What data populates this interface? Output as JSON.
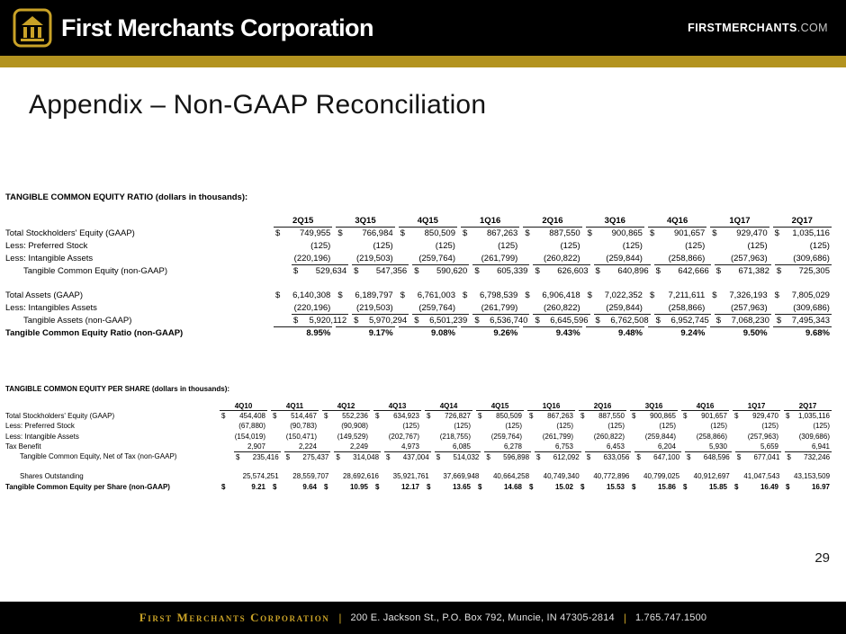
{
  "colors": {
    "gold_accent": "#C9A227",
    "gold_stripe": "#B3931F",
    "bar_black": "#000000"
  },
  "header": {
    "company_name": "First Merchants Corporation",
    "website_bold": "FIRSTMERCHANTS",
    "website_suffix": ".COM"
  },
  "slide": {
    "title": "Appendix – Non-GAAP Reconciliation",
    "page_number": "29"
  },
  "table1": {
    "title": "TANGIBLE COMMON EQUITY RATIO  (dollars in thousands):",
    "currency_symbol": "$",
    "columns": [
      "2Q15",
      "3Q15",
      "4Q15",
      "1Q16",
      "2Q16",
      "3Q16",
      "4Q16",
      "1Q17",
      "2Q17"
    ],
    "rows": [
      {
        "label": "Total Stockholders' Equity (GAAP)",
        "dollar": true,
        "values": [
          "749,955",
          "766,984",
          "850,509",
          "867,263",
          "887,550",
          "900,865",
          "901,657",
          "929,470",
          "1,035,116"
        ]
      },
      {
        "label": "Less: Preferred Stock",
        "values": [
          "(125)",
          "(125)",
          "(125)",
          "(125)",
          "(125)",
          "(125)",
          "(125)",
          "(125)",
          "(125)"
        ]
      },
      {
        "label": "Less: Intangible Assets",
        "values": [
          "(220,196)",
          "(219,503)",
          "(259,764)",
          "(261,799)",
          "(260,822)",
          "(259,844)",
          "(258,866)",
          "(257,963)",
          "(309,686)"
        ]
      },
      {
        "label": "Tangible Common Equity (non-GAAP)",
        "indent": true,
        "dollar": true,
        "topline": true,
        "values": [
          "529,634",
          "547,356",
          "590,620",
          "605,339",
          "626,603",
          "640,896",
          "642,666",
          "671,382",
          "725,305"
        ]
      },
      {
        "spacer": true
      },
      {
        "label": "Total Assets (GAAP)",
        "dollar": true,
        "values": [
          "6,140,308",
          "6,189,797",
          "6,761,003",
          "6,798,539",
          "6,906,418",
          "7,022,352",
          "7,211,611",
          "7,326,193",
          "7,805,029"
        ]
      },
      {
        "label": "Less:  Intangibles Assets",
        "values": [
          "(220,196)",
          "(219,503)",
          "(259,764)",
          "(261,799)",
          "(260,822)",
          "(259,844)",
          "(258,866)",
          "(257,963)",
          "(309,686)"
        ]
      },
      {
        "label": "Tangible Assets (non-GAAP)",
        "indent": true,
        "dollar": true,
        "topline": true,
        "values": [
          "5,920,112",
          "5,970,294",
          "6,501,239",
          "6,536,740",
          "6,645,596",
          "6,762,508",
          "6,952,745",
          "7,068,230",
          "7,495,343"
        ]
      },
      {
        "label": "Tangible Common Equity Ratio (non-GAAP)",
        "bold": true,
        "topline": true,
        "values": [
          "8.95%",
          "9.17%",
          "9.08%",
          "9.26%",
          "9.43%",
          "9.48%",
          "9.24%",
          "9.50%",
          "9.68%"
        ]
      }
    ]
  },
  "table2": {
    "title": "TANGIBLE COMMON EQUITY PER SHARE (dollars in thousands):",
    "currency_symbol": "$",
    "columns": [
      "4Q10",
      "4Q11",
      "4Q12",
      "4Q13",
      "4Q14",
      "4Q15",
      "1Q16",
      "2Q16",
      "3Q16",
      "4Q16",
      "1Q17",
      "2Q17"
    ],
    "rows": [
      {
        "label": "Total Stockholders' Equity (GAAP)",
        "dollar": true,
        "values": [
          "454,408",
          "514,467",
          "552,236",
          "634,923",
          "726,827",
          "850,509",
          "867,263",
          "887,550",
          "900,865",
          "901,657",
          "929,470",
          "1,035,116"
        ]
      },
      {
        "label": "Less: Preferred Stock",
        "values": [
          "(67,880)",
          "(90,783)",
          "(90,908)",
          "(125)",
          "(125)",
          "(125)",
          "(125)",
          "(125)",
          "(125)",
          "(125)",
          "(125)",
          "(125)"
        ]
      },
      {
        "label": "Less: Intangible Assets",
        "values": [
          "(154,019)",
          "(150,471)",
          "(149,529)",
          "(202,767)",
          "(218,755)",
          "(259,764)",
          "(261,799)",
          "(260,822)",
          "(259,844)",
          "(258,866)",
          "(257,963)",
          "(309,686)"
        ]
      },
      {
        "label": "Tax Benefit",
        "values": [
          "2,907",
          "2,224",
          "2,249",
          "4,973",
          "6,085",
          "6,278",
          "6,753",
          "6,453",
          "6,204",
          "5,930",
          "5,659",
          "6,941"
        ]
      },
      {
        "label": "Tangible Common Equity, Net of Tax (non-GAAP)",
        "indent": true,
        "dollar": true,
        "topline": true,
        "values": [
          "235,416",
          "275,437",
          "314,048",
          "437,004",
          "514,032",
          "596,898",
          "612,092",
          "633,056",
          "647,100",
          "648,596",
          "677,041",
          "732,246"
        ]
      },
      {
        "spacer": true
      },
      {
        "label": "Shares Outstanding",
        "indent": true,
        "values": [
          "25,574,251",
          "28,559,707",
          "28,692,616",
          "35,921,761",
          "37,669,948",
          "40,664,258",
          "40,749,340",
          "40,772,896",
          "40,799,025",
          "40,912,697",
          "41,047,543",
          "43,153,509"
        ]
      },
      {
        "label": "Tangible Common Equity per Share (non-GAAP)",
        "bold": true,
        "dollar": true,
        "values": [
          "9.21",
          "9.64",
          "10.95",
          "12.17",
          "13.65",
          "14.68",
          "15.02",
          "15.53",
          "15.86",
          "15.85",
          "16.49",
          "16.97"
        ]
      }
    ]
  },
  "footer": {
    "company": "First Merchants Corporation",
    "separator": "|",
    "address": "200 E. Jackson St., P.O. Box 792, Muncie, IN 47305-2814",
    "phone": "1.765.747.1500"
  }
}
